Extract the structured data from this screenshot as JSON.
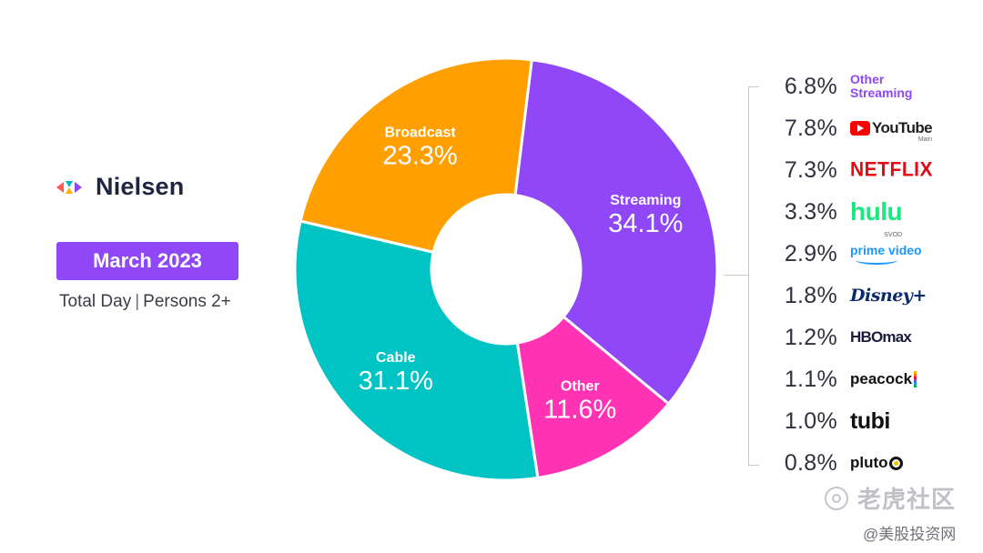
{
  "brand": {
    "name": "Nielsen"
  },
  "period": "March 2023",
  "subtitle": {
    "left": "Total Day",
    "separator": "|",
    "right": "Persons 2+"
  },
  "chart_data": {
    "type": "pie",
    "donut": true,
    "title": "",
    "slices": [
      {
        "label": "Streaming",
        "value": 34.1,
        "display": "34.1%",
        "color": "#8f47f7"
      },
      {
        "label": "Other",
        "value": 11.6,
        "display": "11.6%",
        "color": "#ff33b3"
      },
      {
        "label": "Cable",
        "value": 31.1,
        "display": "31.1%",
        "color": "#00c4c4"
      },
      {
        "label": "Broadcast",
        "value": 23.3,
        "display": "23.3%",
        "color": "#ff9f00"
      }
    ],
    "streaming_breakdown": [
      {
        "label": "Other Streaming",
        "value": 6.8,
        "display": "6.8%"
      },
      {
        "label": "YouTube",
        "sub": "Main",
        "value": 7.8,
        "display": "7.8%"
      },
      {
        "label": "NETFLIX",
        "value": 7.3,
        "display": "7.3%"
      },
      {
        "label": "hulu",
        "sub": "SVOD",
        "value": 3.3,
        "display": "3.3%"
      },
      {
        "label": "prime video",
        "value": 2.9,
        "display": "2.9%"
      },
      {
        "label": "Disney+",
        "value": 1.8,
        "display": "1.8%"
      },
      {
        "label": "HBO max",
        "value": 1.2,
        "display": "1.2%"
      },
      {
        "label": "peacock",
        "value": 1.1,
        "display": "1.1%"
      },
      {
        "label": "tubi",
        "value": 1.0,
        "display": "1.0%"
      },
      {
        "label": "pluto tv",
        "value": 0.8,
        "display": "0.8%"
      }
    ]
  },
  "breakdown_labels": {
    "other_streaming_1": "Other",
    "other_streaming_2": "Streaming",
    "youtube": "YouTube",
    "youtube_sub": "Main",
    "netflix": "NETFLIX",
    "hulu": "hulu",
    "hulu_sub": "SVOD",
    "prime": "prime video",
    "disney": "Disney+",
    "hbo_1": "HBO",
    "hbo_2": "max",
    "peacock": "peacock",
    "tubi": "tubi",
    "pluto": "pluto"
  },
  "watermark": {
    "line1": "老虎社区",
    "line2": "@美股投资网"
  }
}
